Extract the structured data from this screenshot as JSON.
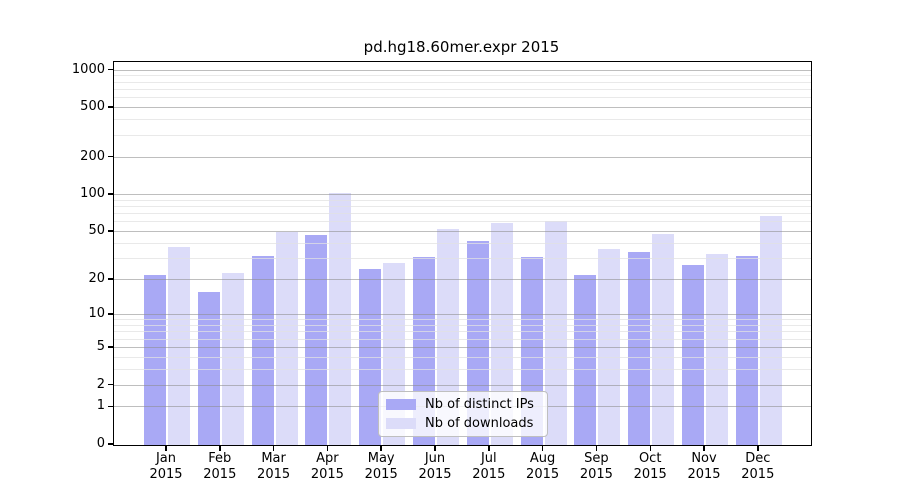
{
  "chart_data": {
    "type": "bar",
    "title": "pd.hg18.60mer.expr 2015",
    "categories": [
      "Jan",
      "Feb",
      "Mar",
      "Apr",
      "May",
      "Jun",
      "Jul",
      "Aug",
      "Sep",
      "Oct",
      "Nov",
      "Dec"
    ],
    "category_year": "2015",
    "series": [
      {
        "name": "Nb of distinct IPs",
        "color": "#a9a9f5",
        "values": [
          22,
          16,
          32,
          47,
          25,
          31,
          42,
          31,
          22,
          34,
          27,
          32
        ]
      },
      {
        "name": "Nb of downloads",
        "color": "#dcdcf9",
        "values": [
          38,
          23,
          50,
          103,
          28,
          53,
          59,
          62,
          36,
          48,
          33,
          68
        ]
      }
    ],
    "yscale": "log10(1+y) symlog-like",
    "yticks": [
      0,
      1,
      2,
      5,
      10,
      20,
      50,
      100,
      200,
      500,
      1000
    ],
    "minor_gridlines": [
      3,
      4,
      6,
      7,
      8,
      9,
      30,
      40,
      60,
      70,
      80,
      90,
      300,
      400,
      600,
      700,
      800,
      900
    ],
    "ylim": [
      0,
      1120
    ],
    "xlabel": "",
    "ylabel": "",
    "grid": "major gray + minor faint, drawn over bars",
    "legend_position": "inside plot, lower center"
  },
  "colors": {
    "background": "#ffffff",
    "spine": "#000000",
    "major_grid": "#bdbdbd",
    "minor_grid": "#e9e9e9",
    "legend_border": "#bfbfbf"
  }
}
